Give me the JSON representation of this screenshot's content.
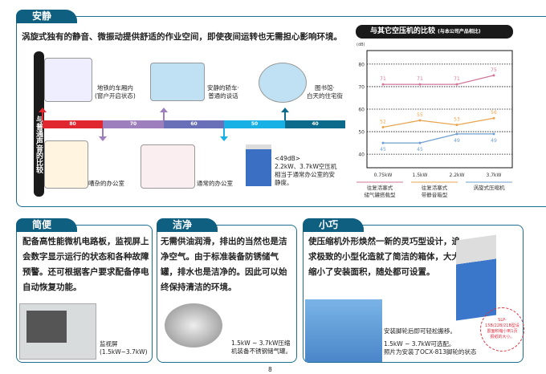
{
  "quiet": {
    "tab": "安静",
    "description": "涡旋式独有的静音、微振动提供舒适的作业空间，即使夜间运转也无需担心影响环境。",
    "side_label": "与普通声音的比较",
    "scale": [
      {
        "label": "80",
        "color": "#e0262f"
      },
      {
        "label": "70",
        "color": "#9d7fbd"
      },
      {
        "label": "60",
        "color": "#6a70b8"
      },
      {
        "label": "50",
        "color": "#18b1e6"
      },
      {
        "label": "40",
        "color": "#0c6a8a"
      }
    ],
    "examples_top": [
      {
        "text": "地铁的车厢内\n(窗户开启状态)"
      },
      {
        "text": "安静的轿车·\n普通的谈话"
      },
      {
        "text": "图书馆·\n白天的住宅街"
      }
    ],
    "examples_bottom": [
      {
        "text": "嘈杂的办公室"
      },
      {
        "text": "通常的办公室"
      },
      {
        "text": "<49dB>\n2.2kW、3.7kW空压机相当于通常办公室的安静度。"
      }
    ]
  },
  "chart_data": {
    "type": "line",
    "title": "与其它空压机的比较",
    "subtitle": "(与本公司产品相比)",
    "ylabel": "(dB)",
    "categories": [
      "0.75kW",
      "1.5kW",
      "2.2kW",
      "3.7kW"
    ],
    "ylim": [
      34,
      86
    ],
    "yticks": [
      40,
      50,
      60,
      70,
      80
    ],
    "grid": true,
    "series": [
      {
        "name": "往复活塞式\n储气罐搭载型",
        "color": "#d2779a",
        "values": [
          71,
          71,
          71,
          75
        ]
      },
      {
        "name": "往复活塞式\n带静音箱型",
        "color": "#e8a54f",
        "values": [
          52,
          55,
          53,
          56
        ]
      },
      {
        "name": "涡旋式压缩机",
        "color": "#6f9fcf",
        "values": [
          45,
          45,
          49,
          49
        ]
      }
    ]
  },
  "simple": {
    "tab": "简便",
    "text": "配备高性能微机电路板，监视屏上会数字显示运行的状态和各种故障预警。还可根据客户要求配备停电自动恢复功能。",
    "caption": "监视屏\n(1.5kW~3.7kW)"
  },
  "clean": {
    "tab": "洁净",
    "text": "无需供油润滑，排出的当然也是洁净空气。由于标准装备防锈储气罐，排水也是洁净的。因此可以始终保持清洁的环境。",
    "caption": "1.5kW ~ 3.7kW压缩机装备不锈钢储气罐。"
  },
  "compact": {
    "tab": "小巧",
    "text": "使压缩机外形焕然一新的灵巧型设计，追求极致的小型化造就了简洁的箱体，大大缩小了安装面积，随处都可设置。",
    "caption1": "安装脚轮后即可轻松搬移。",
    "caption2": "1.5kW ~ 3.7kW可选配。\n照片为安装了OCX-813脚轮的状态",
    "note": "SLP-15B/22B/21B型设置面积缩小到1页报纸的大小。"
  },
  "page_number": "8"
}
